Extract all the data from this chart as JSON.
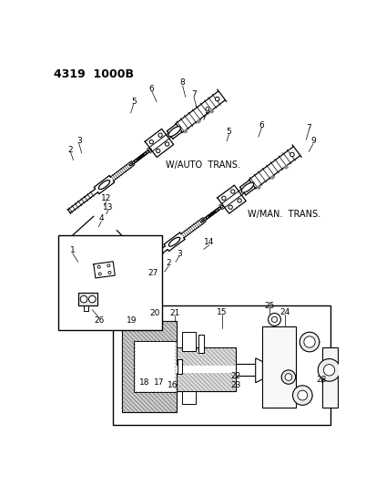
{
  "title": "4319  1000B",
  "bg": "#ffffff",
  "fg": "#000000",
  "fig_w": 4.14,
  "fig_h": 5.33,
  "dpi": 100,
  "auto_trans_label": "W/AUTO  TRANS.",
  "man_trans_label": "W/MAN.  TRANS.",
  "upper_nums": [
    [
      148,
      43,
      "6"
    ],
    [
      192,
      35,
      "8"
    ],
    [
      208,
      52,
      "7"
    ],
    [
      226,
      75,
      "9"
    ],
    [
      122,
      62,
      "5"
    ],
    [
      44,
      118,
      "3"
    ],
    [
      32,
      130,
      "2"
    ],
    [
      83,
      200,
      "12"
    ],
    [
      86,
      212,
      "13"
    ],
    [
      76,
      228,
      "4"
    ],
    [
      258,
      105,
      "5"
    ],
    [
      305,
      95,
      "6"
    ],
    [
      372,
      100,
      "7"
    ],
    [
      378,
      118,
      "9"
    ],
    [
      230,
      262,
      "14"
    ],
    [
      187,
      278,
      "3"
    ],
    [
      172,
      292,
      "2"
    ],
    [
      150,
      306,
      "27"
    ]
  ],
  "inset_label_1": [
    "1",
    32,
    268
  ],
  "inset_label_26": [
    "26",
    60,
    392
  ],
  "lower_nums": [
    [
      120,
      374,
      "19"
    ],
    [
      152,
      363,
      "20"
    ],
    [
      181,
      363,
      "21"
    ],
    [
      248,
      362,
      "15"
    ],
    [
      268,
      453,
      "22"
    ],
    [
      268,
      465,
      "23"
    ],
    [
      316,
      352,
      "25"
    ],
    [
      338,
      362,
      "24"
    ],
    [
      390,
      458,
      "28"
    ],
    [
      138,
      462,
      "18"
    ],
    [
      158,
      462,
      "17"
    ],
    [
      178,
      465,
      "16"
    ]
  ]
}
